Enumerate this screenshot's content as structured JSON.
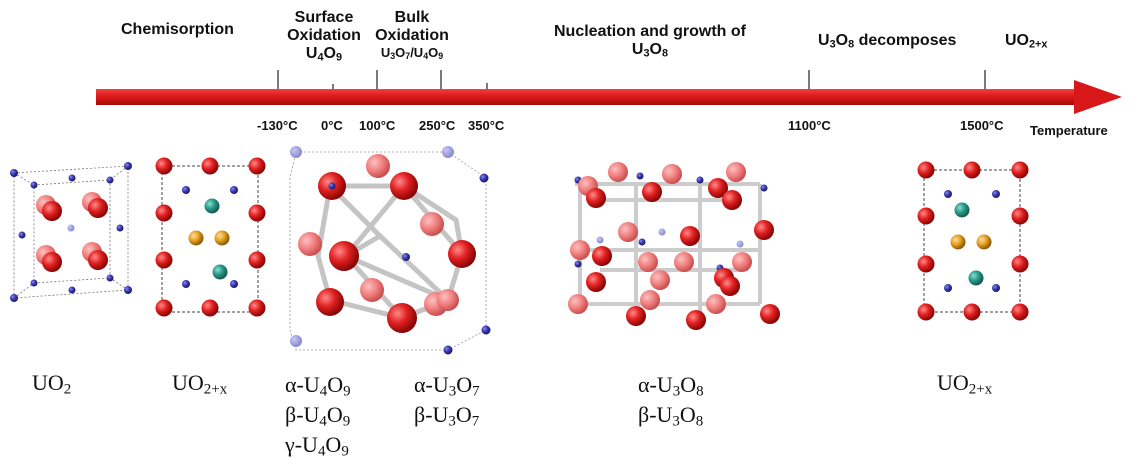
{
  "phases": {
    "chemisorption": "Chemisorption",
    "surface_oxidation_l1": "Surface",
    "surface_oxidation_l2": "Oxidation",
    "surface_oxidation_formula": {
      "base1": "U",
      "sub1": "4",
      "base2": "O",
      "sub2": "9"
    },
    "bulk_oxidation_l1": "Bulk",
    "bulk_oxidation_l2": "Oxidation",
    "bulk_oxidation_formula": "U3O7/U4O9",
    "nucleation_l1": "Nucleation and growth of",
    "nucleation_formula": "U3O8",
    "u3o8_decomposes": "U3O8 decomposes",
    "uo2x_top": "UO2+x"
  },
  "axis": {
    "title": "Temperature",
    "ticks": [
      "-130°C",
      "0°C",
      "100°C",
      "250°C",
      "350°C",
      "1100°C",
      "1500°C"
    ]
  },
  "structures": [
    {
      "name": "UO2",
      "lines": [
        "UO2"
      ]
    },
    {
      "name": "UO2+x",
      "lines": [
        "UO2+x"
      ]
    },
    {
      "name": "U4O9",
      "lines": [
        "α-U4O9",
        "β-U4O9",
        "γ-U4O9"
      ]
    },
    {
      "name": "U3O7",
      "lines": [
        "α-U3O7",
        "β-U3O7"
      ]
    },
    {
      "name": "U3O8",
      "lines": [
        "α-U3O8",
        "β-U3O8"
      ]
    },
    {
      "name": "UO2+x-high",
      "lines": [
        "UO2+x"
      ]
    }
  ],
  "colors": {
    "arrow": "#e02020",
    "oxygen": "#d42020",
    "uranium": "#3a3ab0",
    "interstitial_teal": "#2a9a8a",
    "interstitial_orange": "#e8a020",
    "bond": "#c8c8c8"
  }
}
